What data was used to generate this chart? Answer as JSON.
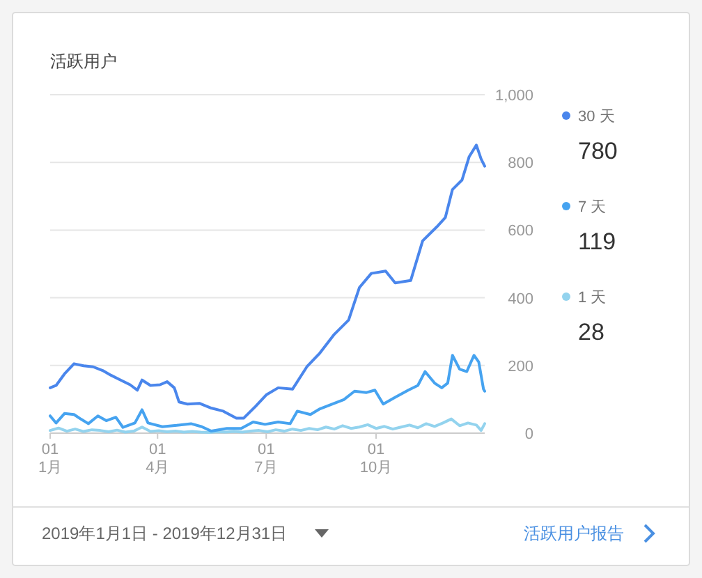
{
  "chart_data": {
    "type": "line",
    "title": "活跃用户",
    "x": [
      "2019-01-01",
      "2019-01-06",
      "2019-01-13",
      "2019-01-21",
      "2019-01-29",
      "2019-02-06",
      "2019-02-14",
      "2019-02-21",
      "2019-03-01",
      "2019-03-09",
      "2019-03-15",
      "2019-03-19",
      "2019-03-26",
      "2019-04-03",
      "2019-04-09",
      "2019-04-15",
      "2019-04-19",
      "2019-04-26",
      "2019-05-06",
      "2019-05-16",
      "2019-05-26",
      "2019-06-06",
      "2019-06-12",
      "2019-06-22",
      "2019-07-01",
      "2019-07-11",
      "2019-07-23",
      "2019-08-04",
      "2019-08-15",
      "2019-08-27",
      "2019-09-08",
      "2019-09-17",
      "2019-09-27",
      "2019-10-09",
      "2019-10-17",
      "2019-10-30",
      "2019-11-09",
      "2019-11-21",
      "2019-11-28",
      "2019-12-04",
      "2019-12-12",
      "2019-12-18",
      "2019-12-24",
      "2019-12-28",
      "2019-12-31"
    ],
    "series": [
      {
        "name": "30 天",
        "color": "#4a86ec",
        "values": [
          134,
          141,
          175,
          205,
          199,
          196,
          185,
          171,
          157,
          143,
          127,
          157,
          141,
          143,
          152,
          134,
          92,
          86,
          88,
          74,
          65,
          44,
          44,
          79,
          113,
          134,
          130,
          196,
          237,
          292,
          334,
          430,
          472,
          479,
          444,
          451,
          568,
          610,
          637,
          720,
          748,
          817,
          851,
          810,
          789
        ]
      },
      {
        "name": "7 天",
        "color": "#46a3f0",
        "x": [
          "2019-01-01",
          "2019-01-06",
          "2019-01-13",
          "2019-01-21",
          "2019-01-27",
          "2019-02-02",
          "2019-02-10",
          "2019-02-17",
          "2019-02-25",
          "2019-03-03",
          "2019-03-13",
          "2019-03-19",
          "2019-03-24",
          "2019-04-05",
          "2019-04-17",
          "2019-04-29",
          "2019-05-08",
          "2019-05-16",
          "2019-05-29",
          "2019-06-10",
          "2019-06-20",
          "2019-06-30",
          "2019-07-11",
          "2019-07-21",
          "2019-07-27",
          "2019-08-07",
          "2019-08-15",
          "2019-08-27",
          "2019-09-04",
          "2019-09-13",
          "2019-09-23",
          "2019-09-30",
          "2019-10-07",
          "2019-10-17",
          "2019-10-28",
          "2019-11-05",
          "2019-11-11",
          "2019-11-19",
          "2019-11-25",
          "2019-11-30",
          "2019-12-04",
          "2019-12-10",
          "2019-12-16",
          "2019-12-22",
          "2019-12-26",
          "2019-12-30",
          "2019-12-31"
        ],
        "values": [
          51,
          30,
          58,
          55,
          41,
          28,
          51,
          37,
          47,
          17,
          30,
          69,
          30,
          19,
          23,
          28,
          19,
          6,
          14,
          14,
          33,
          26,
          33,
          28,
          65,
          55,
          72,
          88,
          99,
          124,
          120,
          127,
          86,
          106,
          127,
          141,
          182,
          148,
          134,
          148,
          230,
          189,
          182,
          230,
          210,
          130,
          124
        ]
      },
      {
        "name": "1 天",
        "color": "#93d3ee",
        "x": [
          "2019-01-01",
          "2019-01-08",
          "2019-01-15",
          "2019-01-22",
          "2019-01-29",
          "2019-02-05",
          "2019-02-12",
          "2019-02-19",
          "2019-02-26",
          "2019-03-05",
          "2019-03-12",
          "2019-03-19",
          "2019-03-26",
          "2019-04-02",
          "2019-04-09",
          "2019-04-16",
          "2019-04-23",
          "2019-04-30",
          "2019-05-07",
          "2019-05-14",
          "2019-05-21",
          "2019-05-28",
          "2019-06-04",
          "2019-06-11",
          "2019-06-18",
          "2019-06-25",
          "2019-07-02",
          "2019-07-09",
          "2019-07-16",
          "2019-07-23",
          "2019-07-30",
          "2019-08-06",
          "2019-08-13",
          "2019-08-20",
          "2019-08-27",
          "2019-09-03",
          "2019-09-10",
          "2019-09-17",
          "2019-09-24",
          "2019-10-01",
          "2019-10-08",
          "2019-10-15",
          "2019-10-22",
          "2019-10-29",
          "2019-11-05",
          "2019-11-12",
          "2019-11-19",
          "2019-11-26",
          "2019-12-03",
          "2019-12-10",
          "2019-12-17",
          "2019-12-24",
          "2019-12-28",
          "2019-12-31"
        ],
        "values": [
          8,
          15,
          6,
          12,
          5,
          10,
          8,
          4,
          9,
          3,
          6,
          18,
          5,
          7,
          4,
          6,
          3,
          5,
          3,
          2,
          4,
          3,
          5,
          3,
          6,
          8,
          4,
          10,
          6,
          12,
          8,
          14,
          10,
          18,
          12,
          22,
          14,
          18,
          25,
          14,
          20,
          12,
          18,
          24,
          16,
          28,
          20,
          30,
          42,
          22,
          30,
          24,
          8,
          28
        ]
      }
    ],
    "xlim": [
      "2019-01-01",
      "2019-12-31"
    ],
    "xticks": [
      {
        "value": "2019-01-01",
        "label": "01\n1月"
      },
      {
        "value": "2019-04-01",
        "label": "01\n4月"
      },
      {
        "value": "2019-07-01",
        "label": "01\n7月"
      },
      {
        "value": "2019-10-01",
        "label": "01\n10月"
      }
    ],
    "ylim": [
      0,
      1000
    ],
    "yticks": [
      0,
      200,
      400,
      600,
      800,
      {
        "value": 1000,
        "label": "1,000"
      }
    ],
    "grid": "y",
    "legend": "right",
    "marker": "none",
    "line_style": "solid",
    "annotations": [
      "780",
      "119",
      "28",
      "2019年1月1日 - 2019年12月31日",
      "活跃用户报告"
    ]
  }
}
